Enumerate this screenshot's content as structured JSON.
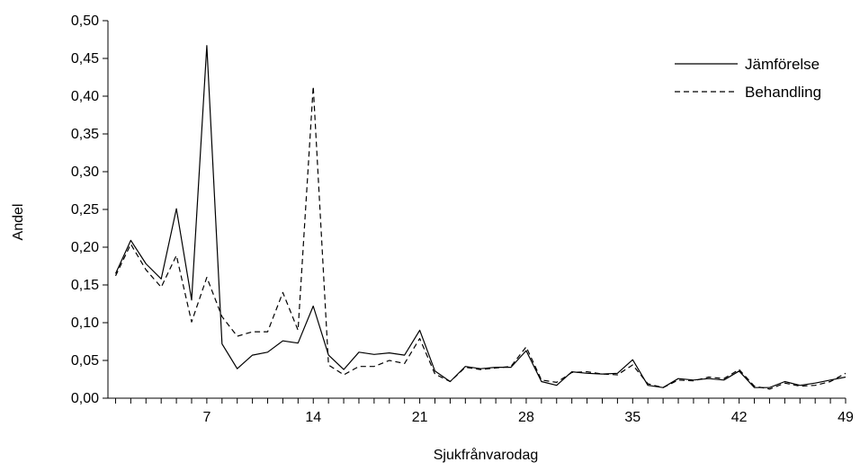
{
  "chart_data": {
    "type": "line",
    "xlabel": "Sjukfrånvarodag",
    "ylabel": "Andel",
    "xlim": [
      0.5,
      49
    ],
    "ylim": [
      0,
      0.5
    ],
    "x": [
      1,
      2,
      3,
      4,
      5,
      6,
      7,
      8,
      9,
      10,
      11,
      12,
      13,
      14,
      15,
      16,
      17,
      18,
      19,
      20,
      21,
      22,
      23,
      24,
      25,
      26,
      27,
      28,
      29,
      30,
      31,
      32,
      33,
      34,
      35,
      36,
      37,
      38,
      39,
      40,
      41,
      42,
      43,
      44,
      45,
      46,
      47,
      48,
      49
    ],
    "x_tick_labels": [
      "7",
      "14",
      "21",
      "28",
      "35",
      "42",
      "49"
    ],
    "y_tick_labels": [
      "0,00",
      "0,05",
      "0,10",
      "0,15",
      "0,20",
      "0,25",
      "0,30",
      "0,35",
      "0,40",
      "0,45",
      "0,50"
    ],
    "legend_position": "top-right",
    "series": [
      {
        "name": "Jämförelse",
        "style": "solid",
        "color": "#000000",
        "values": [
          0.165,
          0.209,
          0.178,
          0.158,
          0.251,
          0.13,
          0.467,
          0.072,
          0.039,
          0.057,
          0.061,
          0.076,
          0.073,
          0.122,
          0.057,
          0.038,
          0.061,
          0.058,
          0.06,
          0.057,
          0.09,
          0.036,
          0.022,
          0.042,
          0.039,
          0.041,
          0.041,
          0.063,
          0.022,
          0.017,
          0.035,
          0.033,
          0.032,
          0.033,
          0.051,
          0.017,
          0.014,
          0.026,
          0.024,
          0.026,
          0.024,
          0.036,
          0.014,
          0.014,
          0.022,
          0.017,
          0.02,
          0.024,
          0.028
        ]
      },
      {
        "name": "Behandling",
        "style": "dashed",
        "color": "#000000",
        "values": [
          0.162,
          0.204,
          0.17,
          0.147,
          0.189,
          0.101,
          0.16,
          0.108,
          0.082,
          0.088,
          0.088,
          0.14,
          0.09,
          0.413,
          0.044,
          0.031,
          0.042,
          0.042,
          0.05,
          0.046,
          0.079,
          0.032,
          0.022,
          0.041,
          0.038,
          0.04,
          0.042,
          0.068,
          0.024,
          0.021,
          0.034,
          0.035,
          0.032,
          0.031,
          0.044,
          0.019,
          0.014,
          0.024,
          0.023,
          0.028,
          0.026,
          0.038,
          0.016,
          0.012,
          0.02,
          0.016,
          0.017,
          0.022,
          0.033
        ]
      }
    ]
  }
}
